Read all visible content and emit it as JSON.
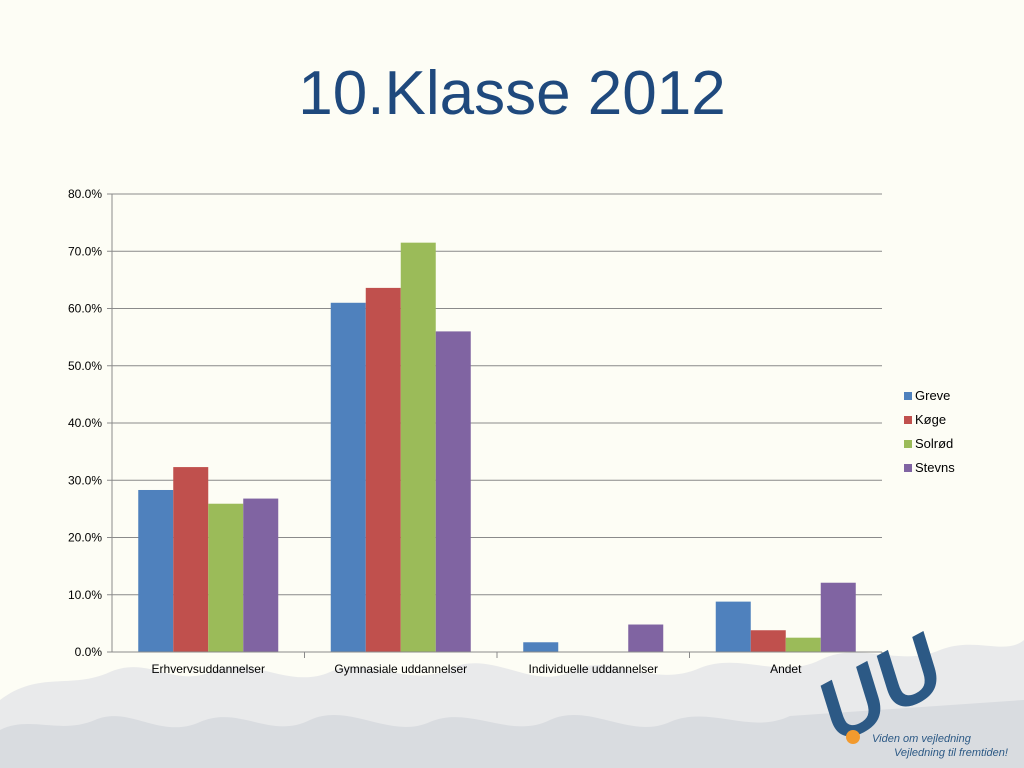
{
  "slide": {
    "title": "10.Klasse 2012"
  },
  "chart_data": {
    "type": "bar",
    "categories": [
      "Erhvervsuddannelser",
      "Gymnasiale uddannelser",
      "Individuelle uddannelser",
      "Andet"
    ],
    "series": [
      {
        "name": "Greve",
        "color": "#4f81bd",
        "values": [
          28.3,
          61.0,
          1.7,
          8.8
        ]
      },
      {
        "name": "Køge",
        "color": "#c0504d",
        "values": [
          32.3,
          63.6,
          0.0,
          3.8
        ]
      },
      {
        "name": "Solrød",
        "color": "#9bbb59",
        "values": [
          25.9,
          71.5,
          0.0,
          2.5
        ]
      },
      {
        "name": "Stevns",
        "color": "#8064a2",
        "values": [
          26.8,
          56.0,
          4.8,
          12.1
        ]
      }
    ],
    "ylim": [
      0,
      80
    ],
    "yticks": [
      "0.0%",
      "10.0%",
      "20.0%",
      "30.0%",
      "40.0%",
      "50.0%",
      "60.0%",
      "70.0%",
      "80.0%"
    ],
    "grid": true,
    "legend_position": "right"
  },
  "logo": {
    "mark": "UU",
    "tagline_1": "Viden om vejledning",
    "tagline_2": "Vejledning til fremtiden!",
    "color": "#2c5985",
    "dot_color": "#f29a2e"
  }
}
